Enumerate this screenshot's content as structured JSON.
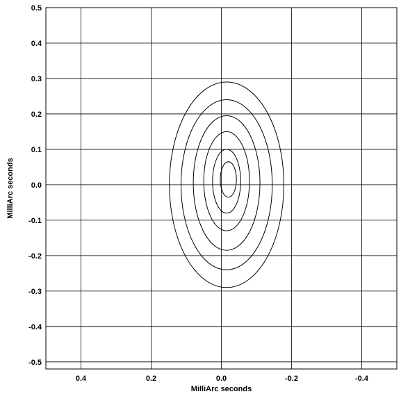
{
  "chart_data": {
    "type": "contour",
    "xlabel": "MilliArc seconds",
    "ylabel": "MilliArc seconds",
    "xlim": [
      0.5,
      -0.5
    ],
    "ylim": [
      -0.52,
      0.5
    ],
    "x_ticks": [
      0.4,
      0.2,
      0.0,
      -0.2,
      -0.4
    ],
    "x_tick_labels": [
      "0.4",
      "0.2",
      "0.0",
      "-0.2",
      "-0.4"
    ],
    "y_ticks": [
      0.5,
      0.4,
      0.3,
      0.2,
      0.1,
      0.0,
      -0.1,
      -0.2,
      -0.3,
      -0.4,
      -0.5
    ],
    "y_tick_labels": [
      "0.5",
      "0.4",
      "0.3",
      "0.2",
      "0.1",
      "0.0",
      "-0.1",
      "-0.2",
      "-0.3",
      "-0.4",
      "-0.5"
    ],
    "grid": true,
    "contour_levels": [
      {
        "cx": -0.015,
        "cy": 0.0,
        "rx": 0.163,
        "ry": 0.29
      },
      {
        "cx": -0.015,
        "cy": 0.0,
        "rx": 0.13,
        "ry": 0.24
      },
      {
        "cx": -0.015,
        "cy": 0.005,
        "rx": 0.095,
        "ry": 0.19
      },
      {
        "cx": -0.015,
        "cy": 0.01,
        "rx": 0.065,
        "ry": 0.14
      },
      {
        "cx": -0.015,
        "cy": 0.01,
        "rx": 0.04,
        "ry": 0.09
      },
      {
        "cx": -0.02,
        "cy": 0.015,
        "rx": 0.023,
        "ry": 0.05
      }
    ],
    "colors": {
      "line": "#000000",
      "grid": "#000000",
      "background": "#ffffff"
    }
  }
}
